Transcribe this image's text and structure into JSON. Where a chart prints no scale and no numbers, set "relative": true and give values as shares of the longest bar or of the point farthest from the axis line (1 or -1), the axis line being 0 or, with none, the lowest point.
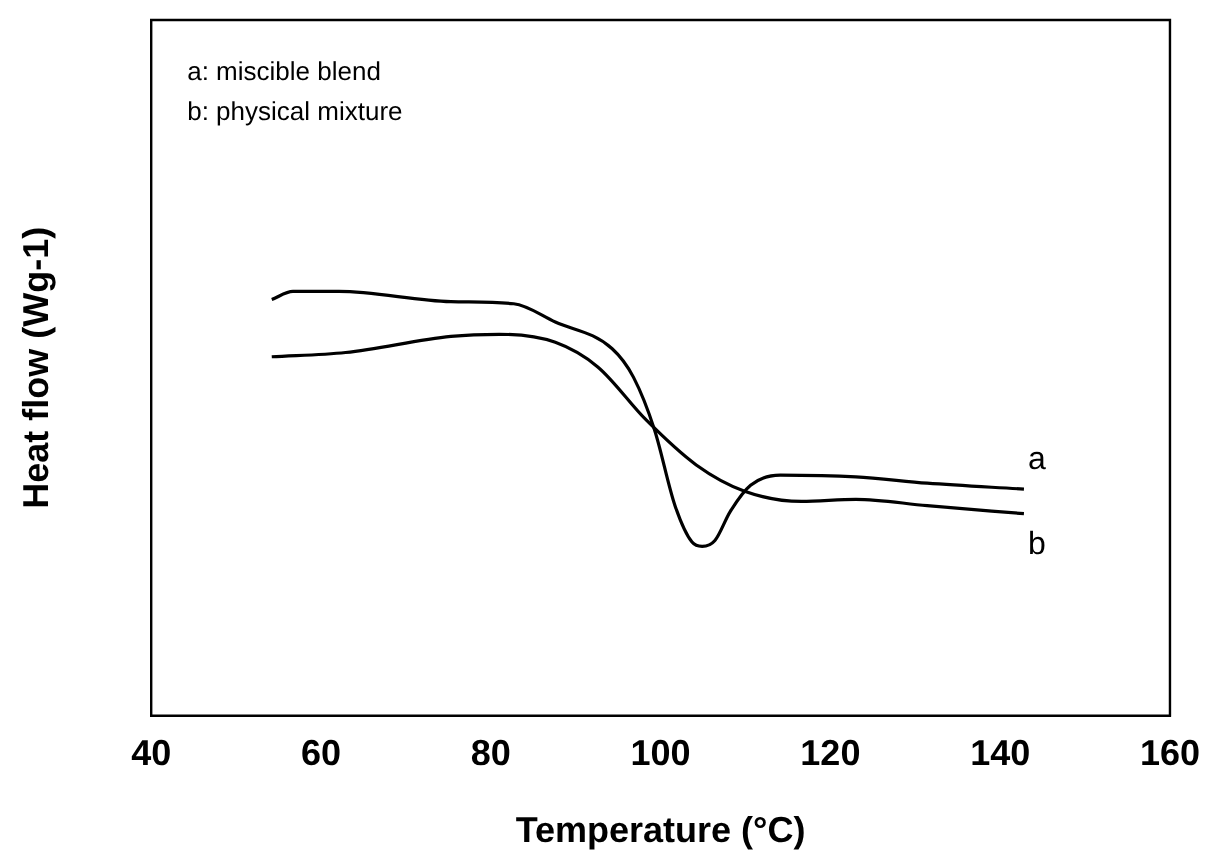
{
  "chart_data": {
    "type": "line",
    "relative": true,
    "xlabel": "Temperature (°C)",
    "ylabel": "Heat flow (Wg-1)",
    "xlim": [
      40,
      160
    ],
    "xticks": [
      40,
      60,
      80,
      100,
      120,
      140,
      160
    ],
    "legend": false,
    "grid": false,
    "marker": "none",
    "line_style": "solid",
    "annotations": [
      "a: miscible blend",
      "b: physical mixture"
    ],
    "series": [
      {
        "name": "a",
        "color": "#000000",
        "x": [
          54.2,
          56.7,
          62.1,
          75.3,
          82.7,
          87.6,
          94.3,
          96.8,
          99.3,
          101.7,
          103.7,
          104.9,
          106.4,
          108.2,
          110.6,
          114.1,
          123.0,
          131.4,
          142.8
        ],
        "values": [
          0.981,
          1.0,
          1.0,
          0.976,
          0.971,
          0.928,
          0.865,
          0.798,
          0.673,
          0.495,
          0.409,
          0.399,
          0.413,
          0.481,
          0.543,
          0.567,
          0.563,
          0.548,
          0.534
        ]
      },
      {
        "name": "b",
        "color": "#000000",
        "x": [
          54.2,
          62.9,
          75.3,
          81.0,
          87.6,
          92.6,
          98.3,
          104.2,
          109.9,
          116.6,
          123.0,
          131.4,
          142.8
        ],
        "values": [
          0.846,
          0.856,
          0.894,
          0.899,
          0.88,
          0.822,
          0.697,
          0.591,
          0.529,
          0.505,
          0.51,
          0.495,
          0.476
        ]
      }
    ]
  }
}
